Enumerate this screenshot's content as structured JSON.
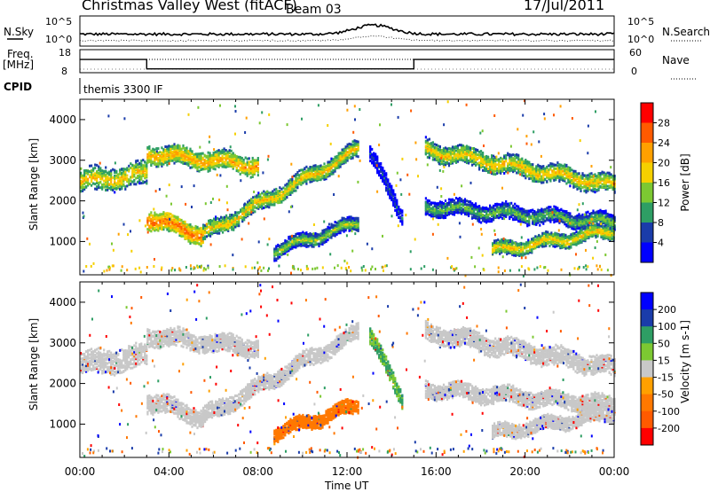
{
  "header": {
    "title": "Christmas Valley West (fitACF)",
    "beam": "Beam 03",
    "date": "17/Jul/2011"
  },
  "top_panels": {
    "nsky_label": "N.Sky",
    "nsearch_label": "N.Search",
    "freq_label": "Freq.",
    "freq_unit": "[MHz]",
    "nave_label": "Nave",
    "cpid_label": "CPID",
    "cpid_value": "themis 3300 IF",
    "noise_ticks": [
      "10^5",
      "10^0"
    ],
    "freq_ticks": [
      "18",
      "8"
    ],
    "nave_ticks": [
      "60",
      "0"
    ]
  },
  "power_panel": {
    "ylabel": "Slant Range [km]",
    "colorbar_label": "Power [dB]",
    "colorbar_ticks": [
      "28",
      "24",
      "20",
      "16",
      "12",
      "8",
      "4"
    ],
    "colors": [
      "#ff0000",
      "#ff5a00",
      "#ffa000",
      "#f5d000",
      "#7cc832",
      "#2e9e64",
      "#1a3caa",
      "#0000ff"
    ]
  },
  "velocity_panel": {
    "ylabel": "Velocity [m s-1]",
    "ylabel_range": "Slant Range [km]",
    "colorbar_ticks": [
      "200",
      "100",
      "50",
      "15",
      "-15",
      "-50",
      "-100",
      "-200"
    ],
    "colors": [
      "#0000ff",
      "#1a3caa",
      "#2e9e64",
      "#7cc832",
      "#c8c8c8",
      "#ffa000",
      "#ff7800",
      "#ff5a00",
      "#ff0000"
    ]
  },
  "chart_data": {
    "type": "heatmap",
    "xlabel": "Time UT",
    "x_ticks": [
      "00:00",
      "04:00",
      "08:00",
      "12:00",
      "16:00",
      "20:00",
      "00:00"
    ],
    "xlim_hours": [
      0,
      24
    ],
    "ylim_km": [
      180,
      4500
    ],
    "y_ticks": [
      1000,
      2000,
      3000,
      4000
    ],
    "freq_mhz": [
      {
        "from_h": 0,
        "to_h": 3,
        "value": 15
      },
      {
        "from_h": 3,
        "to_h": 15,
        "value": 10
      },
      {
        "from_h": 15,
        "to_h": 24,
        "value": 15
      }
    ],
    "echo_bands": [
      {
        "from_h": 0.0,
        "to_h": 3.0,
        "range_start_km": 2500,
        "range_end_km": 2700,
        "width_km": 500,
        "power_db": 20,
        "velocity": 0
      },
      {
        "from_h": 3.0,
        "to_h": 8.0,
        "range_start_km": 3200,
        "range_end_km": 2900,
        "width_km": 400,
        "power_db": 22,
        "velocity": 0
      },
      {
        "from_h": 3.0,
        "to_h": 5.5,
        "range_start_km": 1600,
        "range_end_km": 1200,
        "width_km": 400,
        "power_db": 26,
        "velocity": 0
      },
      {
        "from_h": 5.5,
        "to_h": 12.5,
        "range_start_km": 1200,
        "range_end_km": 3300,
        "width_km": 350,
        "power_db": 20,
        "velocity": 0
      },
      {
        "from_h": 8.7,
        "to_h": 12.5,
        "range_start_km": 800,
        "range_end_km": 1500,
        "width_km": 300,
        "power_db": 16,
        "velocity": -60
      },
      {
        "from_h": 13.0,
        "to_h": 14.5,
        "range_start_km": 3200,
        "range_end_km": 1600,
        "width_km": 350,
        "power_db": 8,
        "velocity": 30
      },
      {
        "from_h": 15.5,
        "to_h": 24.0,
        "range_start_km": 3300,
        "range_end_km": 2400,
        "width_km": 400,
        "power_db": 20,
        "velocity": 0
      },
      {
        "from_h": 15.5,
        "to_h": 24.0,
        "range_start_km": 1900,
        "range_end_km": 1500,
        "width_km": 350,
        "power_db": 14,
        "velocity": 0
      },
      {
        "from_h": 18.5,
        "to_h": 24.0,
        "range_start_km": 800,
        "range_end_km": 1300,
        "width_km": 300,
        "power_db": 20,
        "velocity": 0
      }
    ]
  }
}
